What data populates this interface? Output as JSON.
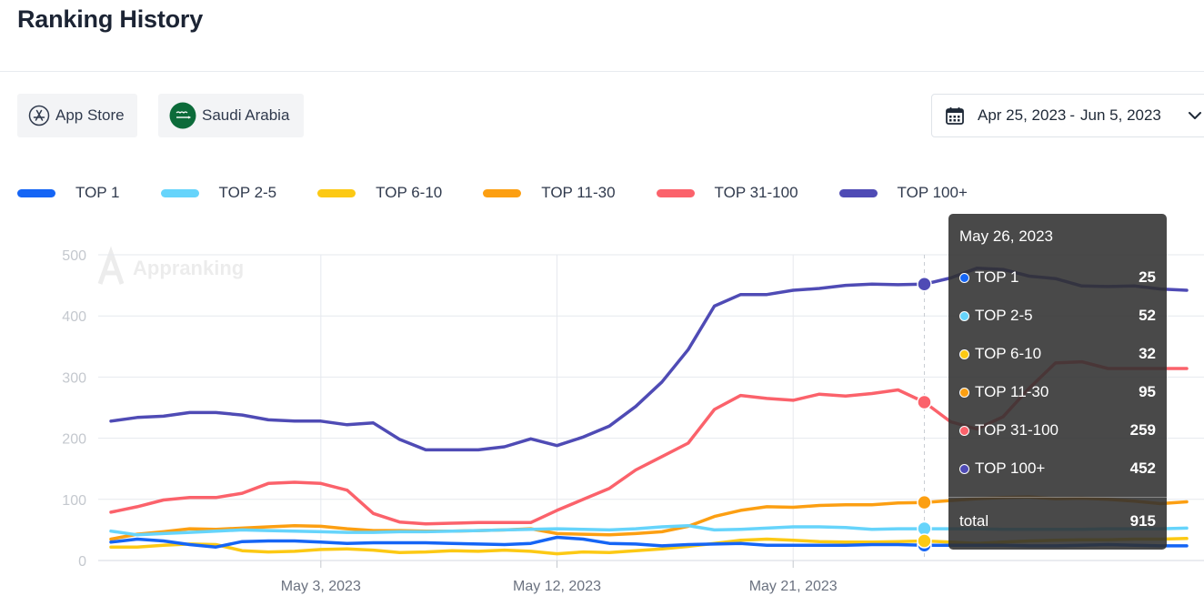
{
  "page": {
    "title": "Ranking History"
  },
  "filters": {
    "store_label": "App Store",
    "country_label": "Saudi Arabia",
    "date_start": "Apr 25, 2023",
    "date_sep": "-",
    "date_end": "Jun 5, 2023"
  },
  "icons": {
    "store": "app-store-icon",
    "country": "saudi-flag-icon",
    "calendar": "calendar-icon",
    "dropdown": "chevron-down-icon"
  },
  "colors": {
    "TOP 1": "#1565f5",
    "TOP 2-5": "#66d4fb",
    "TOP 6-10": "#fcc914",
    "TOP 11-30": "#fc9f12",
    "TOP 31-100": "#fb626b",
    "TOP 100+": "#4f4bb5"
  },
  "chart_data": {
    "type": "line",
    "ylim": [
      0,
      500
    ],
    "yticks": [
      0,
      100,
      200,
      300,
      400,
      500
    ],
    "xticks": [
      {
        "label": "May 3, 2023",
        "index": 8
      },
      {
        "label": "May 12, 2023",
        "index": 17
      },
      {
        "label": "May 21, 2023",
        "index": 26
      }
    ],
    "x": [
      "Apr 25",
      "Apr 26",
      "Apr 27",
      "Apr 28",
      "Apr 29",
      "Apr 30",
      "May 1",
      "May 2",
      "May 3",
      "May 4",
      "May 5",
      "May 6",
      "May 7",
      "May 8",
      "May 9",
      "May 10",
      "May 11",
      "May 12",
      "May 13",
      "May 14",
      "May 15",
      "May 16",
      "May 17",
      "May 18",
      "May 19",
      "May 20",
      "May 21",
      "May 22",
      "May 23",
      "May 24",
      "May 25",
      "May 26",
      "May 27",
      "May 28",
      "May 29",
      "May 30",
      "May 31",
      "Jun 1",
      "Jun 2",
      "Jun 3",
      "Jun 4",
      "Jun 5"
    ],
    "grid": true,
    "legend_position": "top-left",
    "series": [
      {
        "name": "TOP 1",
        "values": [
          30,
          35,
          32,
          26,
          22,
          31,
          32,
          32,
          30,
          28,
          29,
          29,
          29,
          28,
          27,
          26,
          28,
          38,
          35,
          28,
          27,
          24,
          26,
          27,
          28,
          25,
          25,
          25,
          25,
          26,
          26,
          25,
          25,
          25,
          25,
          24,
          24,
          25,
          26,
          25,
          24,
          24
        ]
      },
      {
        "name": "TOP 2-5",
        "values": [
          48,
          42,
          44,
          46,
          48,
          50,
          49,
          48,
          47,
          46,
          46,
          47,
          47,
          48,
          49,
          50,
          51,
          52,
          51,
          50,
          52,
          55,
          57,
          50,
          51,
          53,
          55,
          55,
          54,
          51,
          52,
          52,
          52,
          52,
          51,
          51,
          51,
          51,
          52,
          52,
          52,
          53
        ]
      },
      {
        "name": "TOP 6-10",
        "values": [
          22,
          22,
          25,
          27,
          26,
          16,
          14,
          15,
          18,
          19,
          17,
          13,
          14,
          16,
          15,
          17,
          15,
          11,
          14,
          13,
          16,
          19,
          23,
          28,
          33,
          35,
          33,
          31,
          30,
          30,
          31,
          32,
          30,
          28,
          30,
          32,
          33,
          34,
          34,
          35,
          35,
          36
        ]
      },
      {
        "name": "TOP 11-30",
        "values": [
          35,
          43,
          47,
          52,
          51,
          53,
          55,
          57,
          56,
          52,
          49,
          49,
          48,
          48,
          49,
          50,
          52,
          44,
          43,
          42,
          44,
          47,
          56,
          72,
          82,
          88,
          87,
          90,
          91,
          91,
          94,
          95,
          98,
          101,
          103,
          104,
          101,
          102,
          100,
          97,
          93,
          96
        ]
      },
      {
        "name": "TOP 31-100",
        "values": [
          79,
          88,
          99,
          103,
          103,
          110,
          126,
          128,
          126,
          115,
          77,
          63,
          60,
          61,
          62,
          62,
          62,
          82,
          100,
          118,
          148,
          170,
          192,
          247,
          270,
          265,
          262,
          272,
          269,
          273,
          279,
          259,
          227,
          215,
          235,
          282,
          323,
          325,
          314,
          314,
          314,
          314
        ]
      },
      {
        "name": "TOP 100+",
        "values": [
          228,
          234,
          236,
          242,
          242,
          238,
          230,
          228,
          228,
          222,
          225,
          198,
          181,
          181,
          181,
          186,
          199,
          188,
          202,
          220,
          252,
          292,
          345,
          416,
          435,
          435,
          442,
          445,
          450,
          452,
          451,
          452,
          462,
          478,
          476,
          465,
          461,
          449,
          448,
          449,
          444,
          442
        ]
      }
    ],
    "hover_index": 31
  },
  "tooltip": {
    "date": "May 26, 2023",
    "rows": [
      {
        "label": "TOP 1",
        "value": "25"
      },
      {
        "label": "TOP 2-5",
        "value": "52"
      },
      {
        "label": "TOP 6-10",
        "value": "32"
      },
      {
        "label": "TOP 11-30",
        "value": "95"
      },
      {
        "label": "TOP 31-100",
        "value": "259"
      },
      {
        "label": "TOP 100+",
        "value": "452"
      }
    ],
    "total_label": "total",
    "total_value": "915"
  }
}
